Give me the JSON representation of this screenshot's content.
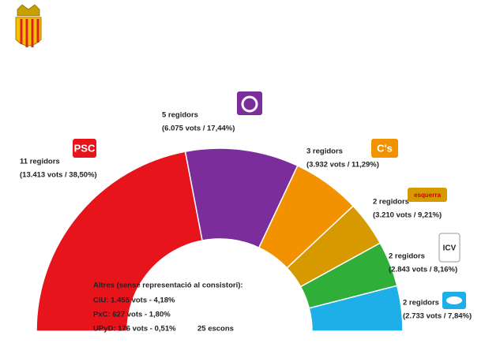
{
  "chart_data": {
    "type": "semidonut",
    "series": [
      {
        "name": "PSC",
        "color": "#e8141c",
        "values": [
          11
        ],
        "value_labels": [
          "11 regidors"
        ],
        "detail": "(13.413 vots / 38,50%)",
        "logo": "PSC"
      },
      {
        "name": null,
        "color": "#7b2d9b",
        "values": [
          5
        ],
        "value_labels": [
          "5 regidors"
        ],
        "detail": "(6.075 vots / 17,44%)",
        "logo": null
      },
      {
        "name": "C's",
        "color": "#f39200",
        "values": [
          3
        ],
        "value_labels": [
          "3 regidors"
        ],
        "detail": "(3.932 vots / 11,29%)",
        "logo": "C's"
      },
      {
        "name": "esquerra",
        "color": "#d69a00",
        "values": [
          2
        ],
        "value_labels": [
          "2 regidors"
        ],
        "detail": "(3.210 vots / 9,21%)",
        "logo": "esquerra"
      },
      {
        "name": "ICV",
        "color": "#2fae3a",
        "values": [
          2
        ],
        "value_labels": [
          "2 regidors"
        ],
        "detail": "(2.843 vots / 8,16%)",
        "logo": "ICV"
      },
      {
        "name": null,
        "color": "#1eaee8",
        "values": [
          2
        ],
        "value_labels": [
          "2 regidors"
        ],
        "detail": "(2.733 vots / 7,84%)",
        "logo": null
      }
    ],
    "others_title": "Altres (sense representació al consistori):",
    "others": [
      "CiU: 1.455 vots - 4,18%",
      "PxC: 627 vots - 1,80%",
      "UPyD: 176 vots - 0,51%"
    ],
    "total_label": "25 escons"
  }
}
